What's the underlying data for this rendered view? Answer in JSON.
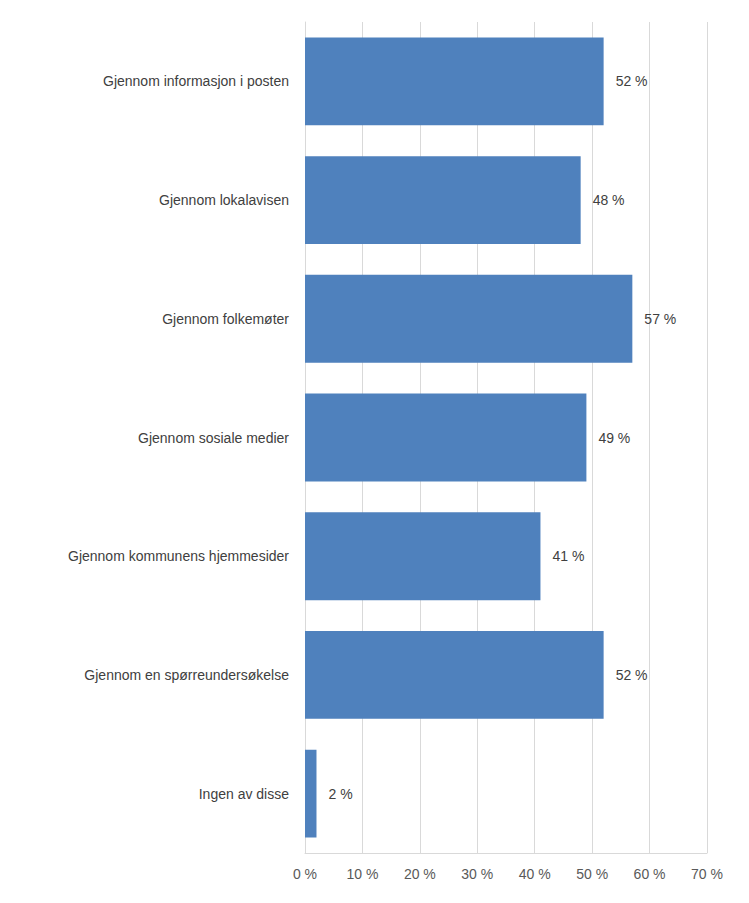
{
  "chart_data": {
    "type": "bar",
    "orientation": "horizontal",
    "categories": [
      "Gjennom informasjon i posten",
      "Gjennom lokalavisen",
      "Gjennom folkemøter",
      "Gjennom sosiale medier",
      "Gjennom kommunens hjemmesider",
      "Gjennom en spørreundersøkelse",
      "Ingen av disse"
    ],
    "values": [
      52,
      48,
      57,
      49,
      41,
      52,
      2
    ],
    "value_labels": [
      "52 %",
      "48 %",
      "57 %",
      "49 %",
      "41 %",
      "52 %",
      "2 %"
    ],
    "color": "#4f81bd",
    "xlim": [
      0,
      70
    ],
    "xticks": [
      {
        "value": 0,
        "label": "0 %"
      },
      {
        "value": 10,
        "label": "10 %"
      },
      {
        "value": 20,
        "label": "20 %"
      },
      {
        "value": 30,
        "label": "30 %"
      },
      {
        "value": 40,
        "label": "40 %"
      },
      {
        "value": 50,
        "label": "50 %"
      },
      {
        "value": 60,
        "label": "60 %"
      },
      {
        "value": 70,
        "label": "70 %"
      }
    ],
    "grid": true,
    "data_labels": true
  }
}
